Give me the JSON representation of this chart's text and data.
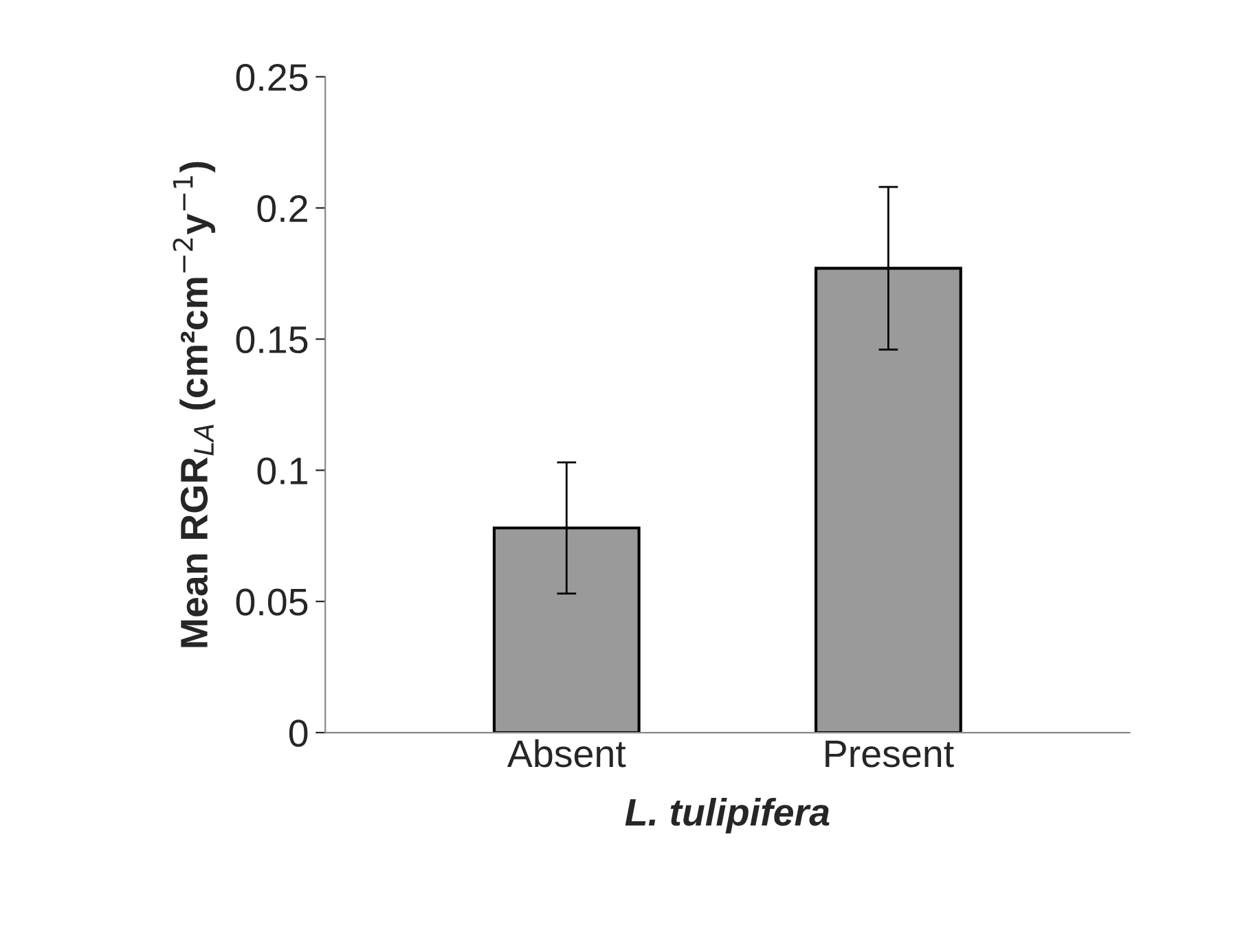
{
  "chart_data": {
    "type": "bar",
    "xlabel": "L. tulipifera",
    "ylabel": "Mean RGR$_{LA}$ (cm²cm$^{−2}$y$^{−1}$)",
    "categories": [
      "Absent",
      "Present"
    ],
    "values": [
      0.078,
      0.177
    ],
    "errors": [
      0.025,
      0.031
    ],
    "color": "#9a9a9a",
    "ylim": [
      0,
      0.25
    ],
    "yticks": [
      0,
      0.05,
      0.1,
      0.15,
      0.2,
      0.25
    ],
    "grid": false
  }
}
